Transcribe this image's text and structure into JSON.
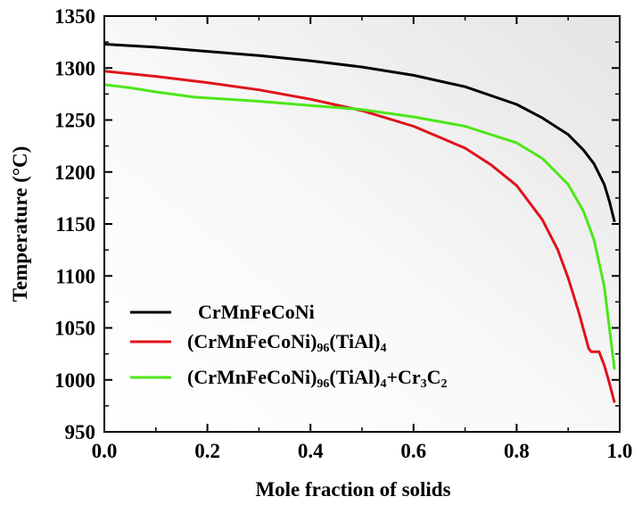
{
  "chart_data": {
    "type": "line",
    "title": "",
    "xlabel": "Mole fraction of solids",
    "ylabel": "Temperature (°C)",
    "xlim": [
      0,
      1.0
    ],
    "ylim": [
      950,
      1350
    ],
    "xticks": [
      "0.0",
      "0.2",
      "0.4",
      "0.6",
      "0.8",
      "1.0"
    ],
    "yticks": [
      "950",
      "1000",
      "1050",
      "1100",
      "1150",
      "1200",
      "1250",
      "1300",
      "1350"
    ],
    "legend_placement": "bottom-left",
    "background": "gray gradient",
    "series": [
      {
        "name": "CrMnFeCoNi",
        "color": "#000000",
        "x": [
          0.0,
          0.1,
          0.2,
          0.3,
          0.4,
          0.5,
          0.6,
          0.7,
          0.8,
          0.85,
          0.9,
          0.93,
          0.95,
          0.97,
          0.98,
          0.99
        ],
        "y": [
          1323,
          1320,
          1316,
          1312,
          1307,
          1301,
          1293,
          1282,
          1265,
          1252,
          1236,
          1221,
          1208,
          1188,
          1172,
          1152
        ]
      },
      {
        "name": "(CrMnFeCoNi)96(TiAl)4",
        "color": "#e0131b",
        "x": [
          0.0,
          0.1,
          0.2,
          0.3,
          0.4,
          0.5,
          0.6,
          0.7,
          0.75,
          0.8,
          0.85,
          0.88,
          0.9,
          0.92,
          0.94,
          0.945,
          0.96,
          0.97,
          0.98,
          0.99
        ],
        "y": [
          1297,
          1292,
          1286,
          1279,
          1270,
          1259,
          1244,
          1223,
          1207,
          1187,
          1154,
          1125,
          1098,
          1066,
          1030,
          1027,
          1027,
          1014,
          997,
          978
        ]
      },
      {
        "name": "(CrMnFeCoNi)96(TiAl)4+Cr3C2",
        "color": "#4de619",
        "x": [
          0.0,
          0.05,
          0.1,
          0.175,
          0.3,
          0.4,
          0.5,
          0.6,
          0.7,
          0.8,
          0.85,
          0.9,
          0.93,
          0.95,
          0.97,
          0.98,
          0.99
        ],
        "y": [
          1284,
          1281,
          1277,
          1272,
          1268,
          1264,
          1260,
          1253,
          1244,
          1228,
          1213,
          1188,
          1162,
          1135,
          1090,
          1050,
          1010
        ]
      }
    ]
  },
  "legend": {
    "entries": [
      {
        "text": "CrMnFeCoNi",
        "sub1": "",
        "mid": "",
        "sub2": "",
        "tail": "",
        "sub3": "",
        "tail2": "",
        "sub4": ""
      },
      {
        "text": "(CrMnFeCoNi)",
        "sub1": "96",
        "mid": "(TiAl)",
        "sub2": "4",
        "tail": "",
        "sub3": "",
        "tail2": "",
        "sub4": ""
      },
      {
        "text": "(CrMnFeCoNi)",
        "sub1": "96",
        "mid": "(TiAl)",
        "sub2": "4",
        "tail": "+Cr",
        "sub3": "3",
        "tail2": "C",
        "sub4": "2"
      }
    ]
  }
}
